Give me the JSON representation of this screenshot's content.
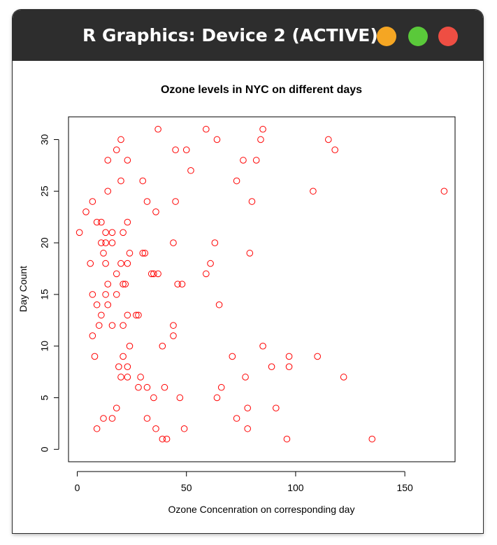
{
  "window": {
    "title": "R Graphics: Device 2 (ACTIVE)",
    "buttons": {
      "minimize": {
        "icon": "minimize-icon",
        "color": "#f5a623"
      },
      "maximize": {
        "icon": "maximize-icon",
        "color": "#5ac93a"
      },
      "close": {
        "icon": "close-icon",
        "color": "#ee4e43"
      }
    }
  },
  "chart_data": {
    "type": "scatter",
    "title": "Ozone levels in NYC on different days",
    "xlabel": "Ozone Concenration on corresponding day",
    "ylabel": "Day Count",
    "xlim": [
      -4,
      173
    ],
    "ylim": [
      -1.2,
      32.2
    ],
    "xticks": [
      0,
      50,
      100,
      150
    ],
    "yticks": [
      0,
      5,
      10,
      15,
      20,
      25,
      30
    ],
    "marker": "open-circle",
    "color": "#ff0000",
    "grid": false,
    "points": [
      [
        1,
        21
      ],
      [
        4,
        23
      ],
      [
        6,
        18
      ],
      [
        7,
        24
      ],
      [
        7,
        11
      ],
      [
        7,
        15
      ],
      [
        8,
        9
      ],
      [
        9,
        2
      ],
      [
        9,
        14
      ],
      [
        9,
        22
      ],
      [
        10,
        12
      ],
      [
        11,
        13
      ],
      [
        11,
        20
      ],
      [
        11,
        22
      ],
      [
        12,
        19
      ],
      [
        12,
        3
      ],
      [
        13,
        15
      ],
      [
        13,
        20
      ],
      [
        13,
        21
      ],
      [
        13,
        18
      ],
      [
        14,
        25
      ],
      [
        14,
        28
      ],
      [
        14,
        16
      ],
      [
        14,
        14
      ],
      [
        16,
        21
      ],
      [
        16,
        20
      ],
      [
        16,
        12
      ],
      [
        16,
        3
      ],
      [
        18,
        29
      ],
      [
        18,
        17
      ],
      [
        18,
        15
      ],
      [
        18,
        4
      ],
      [
        19,
        8
      ],
      [
        20,
        30
      ],
      [
        20,
        26
      ],
      [
        20,
        18
      ],
      [
        20,
        7
      ],
      [
        21,
        21
      ],
      [
        21,
        16
      ],
      [
        21,
        12
      ],
      [
        21,
        9
      ],
      [
        22,
        16
      ],
      [
        23,
        28
      ],
      [
        23,
        22
      ],
      [
        23,
        18
      ],
      [
        23,
        13
      ],
      [
        23,
        8
      ],
      [
        23,
        7
      ],
      [
        24,
        19
      ],
      [
        24,
        10
      ],
      [
        27,
        13
      ],
      [
        28,
        13
      ],
      [
        28,
        6
      ],
      [
        29,
        7
      ],
      [
        30,
        26
      ],
      [
        30,
        19
      ],
      [
        31,
        19
      ],
      [
        32,
        24
      ],
      [
        32,
        6
      ],
      [
        32,
        3
      ],
      [
        34,
        17
      ],
      [
        35,
        17
      ],
      [
        35,
        5
      ],
      [
        36,
        23
      ],
      [
        36,
        2
      ],
      [
        37,
        31
      ],
      [
        37,
        17
      ],
      [
        39,
        10
      ],
      [
        39,
        1
      ],
      [
        40,
        6
      ],
      [
        41,
        1
      ],
      [
        44,
        20
      ],
      [
        44,
        12
      ],
      [
        44,
        11
      ],
      [
        45,
        29
      ],
      [
        45,
        24
      ],
      [
        46,
        16
      ],
      [
        47,
        5
      ],
      [
        48,
        16
      ],
      [
        49,
        2
      ],
      [
        50,
        29
      ],
      [
        52,
        27
      ],
      [
        59,
        31
      ],
      [
        59,
        17
      ],
      [
        61,
        18
      ],
      [
        63,
        20
      ],
      [
        64,
        30
      ],
      [
        64,
        5
      ],
      [
        65,
        14
      ],
      [
        66,
        6
      ],
      [
        71,
        9
      ],
      [
        73,
        26
      ],
      [
        73,
        3
      ],
      [
        76,
        28
      ],
      [
        77,
        7
      ],
      [
        78,
        4
      ],
      [
        78,
        2
      ],
      [
        79,
        19
      ],
      [
        80,
        24
      ],
      [
        82,
        28
      ],
      [
        84,
        30
      ],
      [
        85,
        31
      ],
      [
        85,
        10
      ],
      [
        89,
        8
      ],
      [
        91,
        4
      ],
      [
        96,
        1
      ],
      [
        97,
        9
      ],
      [
        97,
        8
      ],
      [
        108,
        25
      ],
      [
        110,
        9
      ],
      [
        115,
        30
      ],
      [
        118,
        29
      ],
      [
        122,
        7
      ],
      [
        135,
        1
      ],
      [
        168,
        25
      ]
    ]
  }
}
